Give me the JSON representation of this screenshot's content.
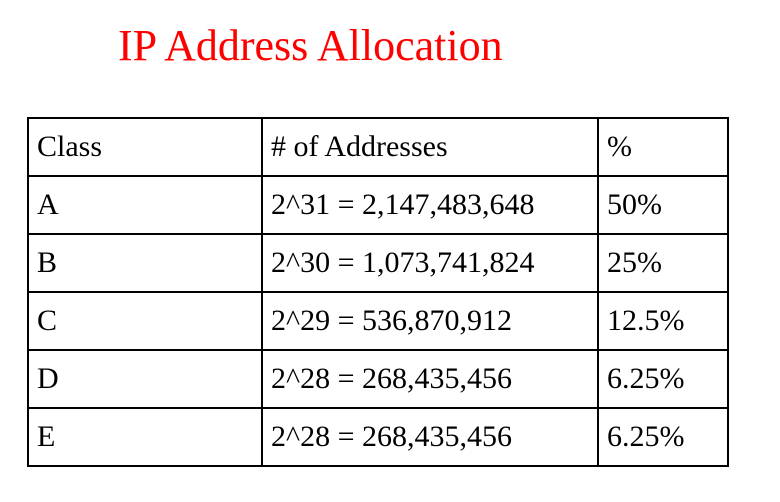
{
  "title": "IP Address Allocation",
  "colors": {
    "title": "#ff0000",
    "text": "#000000",
    "border": "#000000",
    "background": "#ffffff"
  },
  "table": {
    "headers": [
      "Class",
      "# of Addresses",
      "%"
    ],
    "rows": [
      [
        "A",
        "2^31 = 2,147,483,648",
        "50%"
      ],
      [
        "B",
        "2^30 = 1,073,741,824",
        "25%"
      ],
      [
        "C",
        "2^29 = 536,870,912",
        "12.5%"
      ],
      [
        "D",
        "2^28 = 268,435,456",
        "6.25%"
      ],
      [
        "E",
        "2^28 = 268,435,456",
        "6.25%"
      ]
    ]
  }
}
